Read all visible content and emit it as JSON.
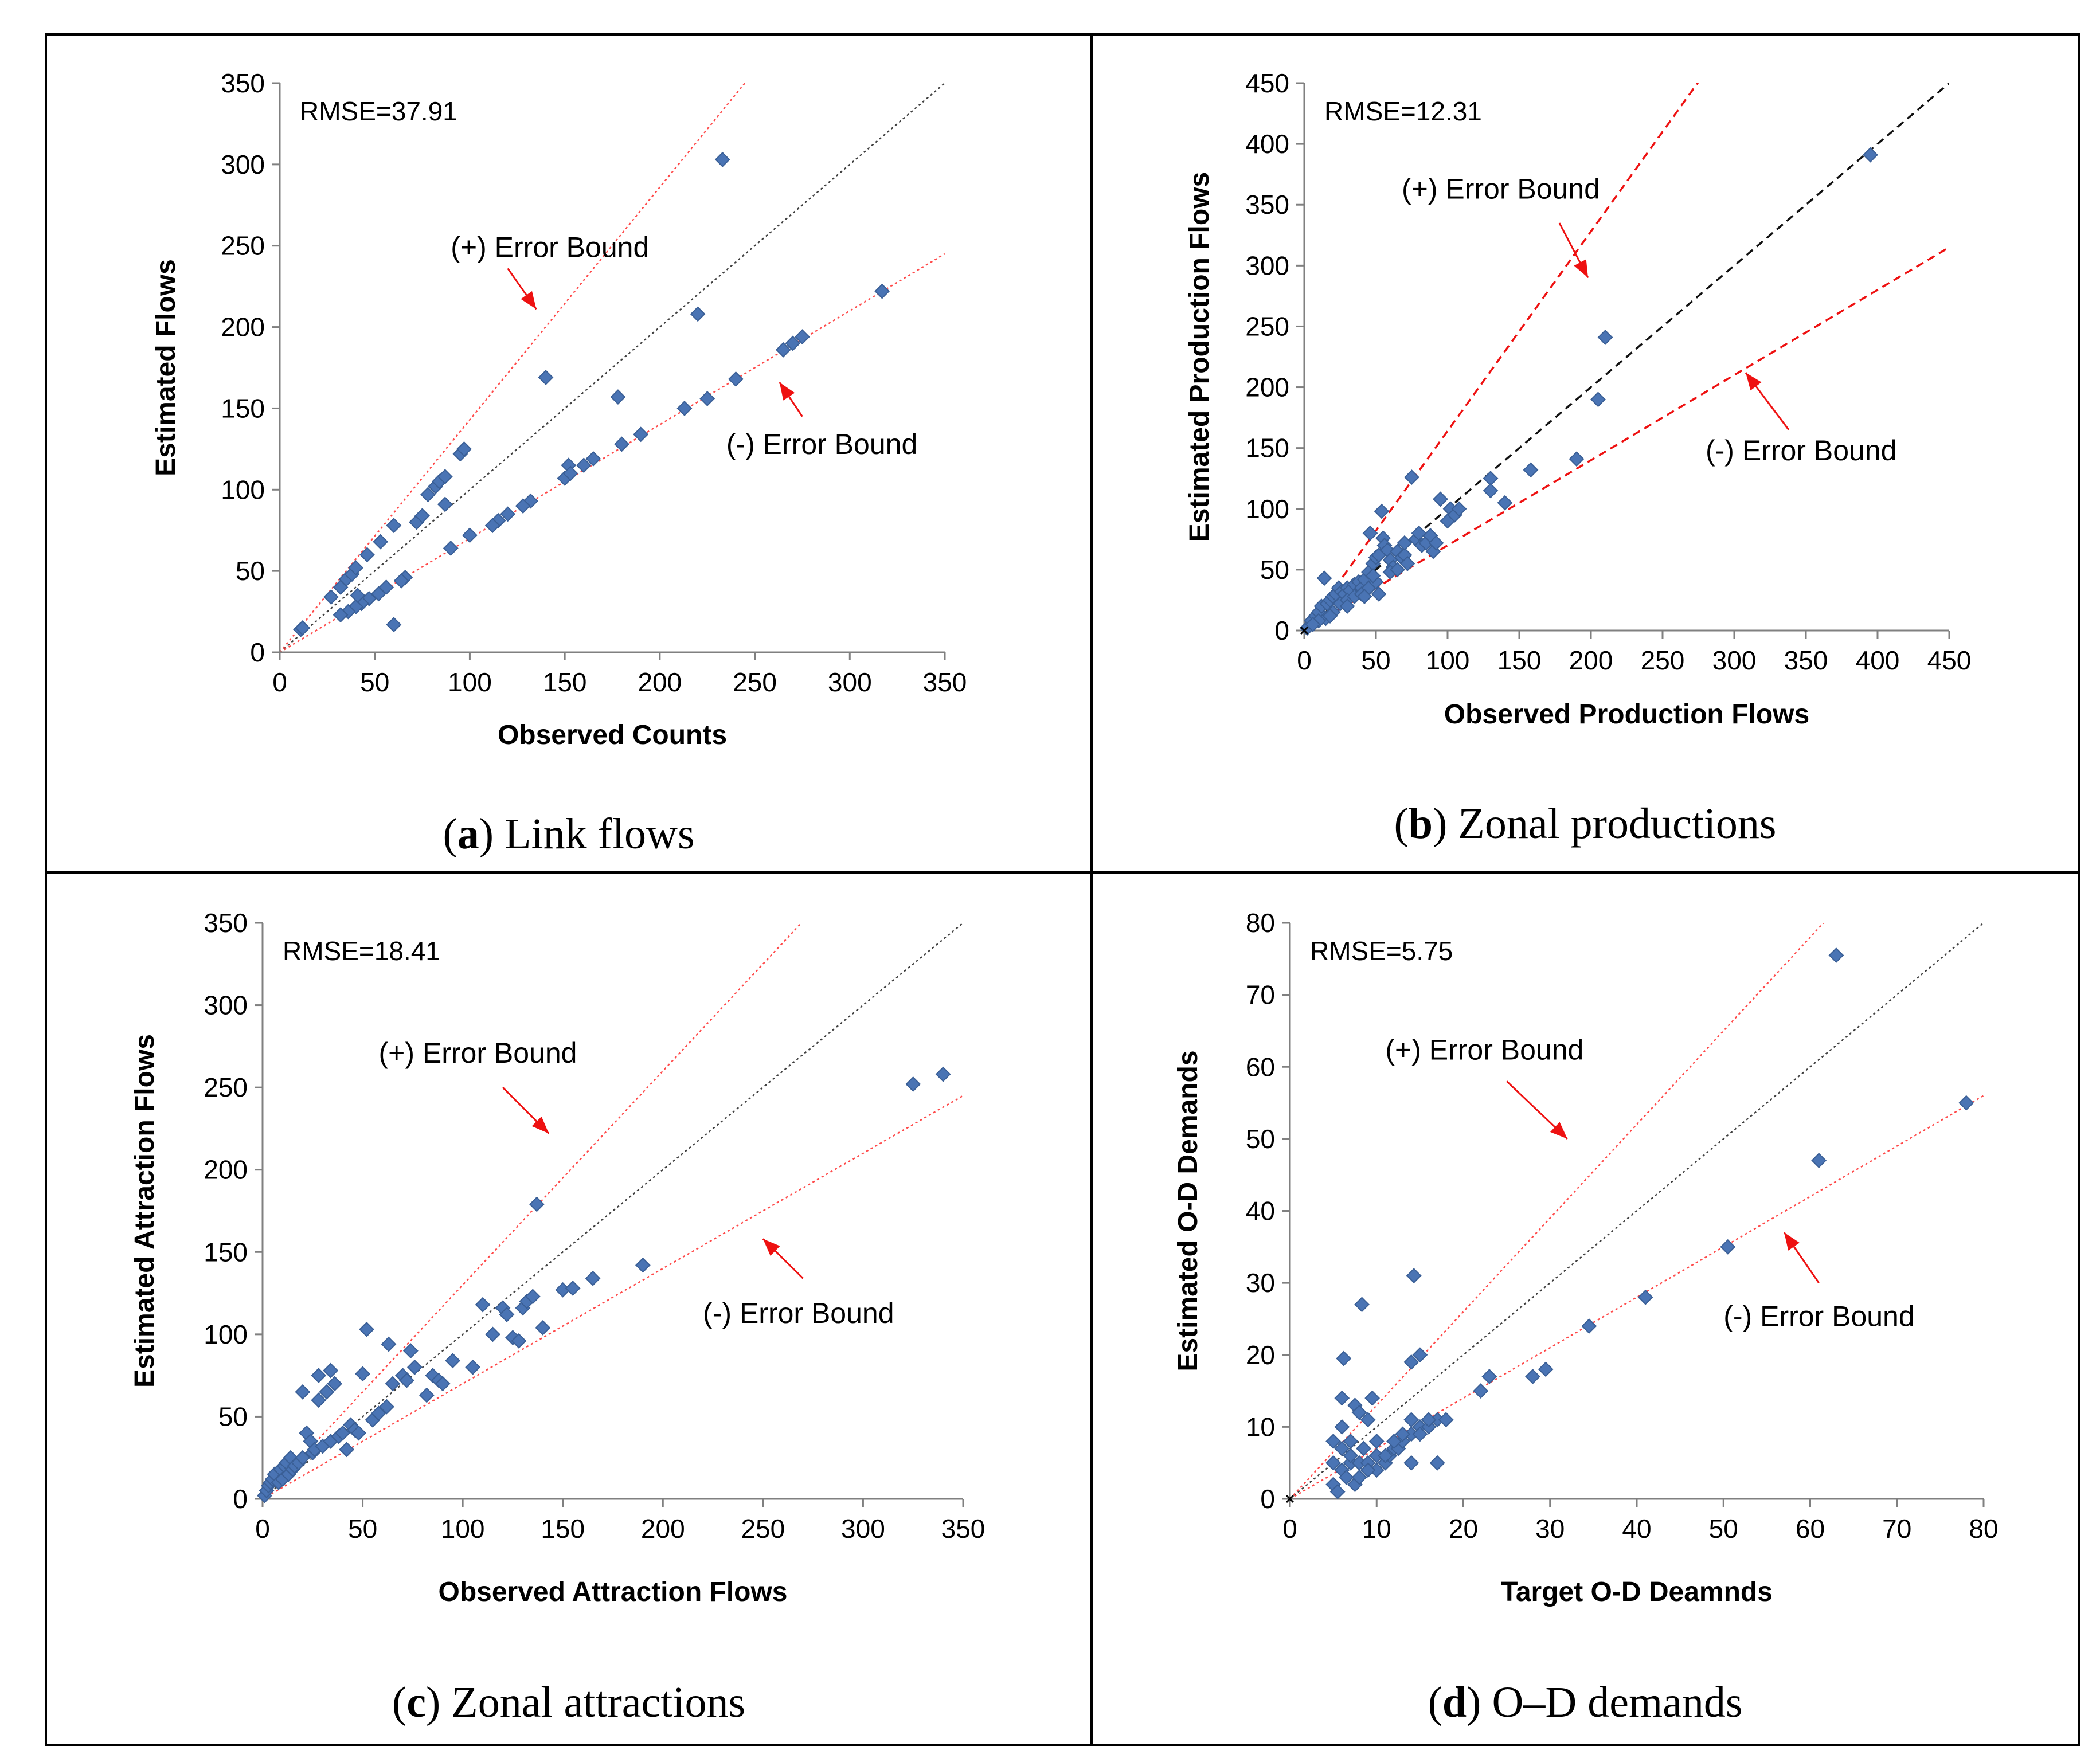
{
  "chart_data": [
    {
      "type": "scatter",
      "panel": "a",
      "caption_letter": "a",
      "caption_text": "Link flows",
      "xlabel": "Observed Counts",
      "ylabel": "Estimated Flows",
      "xlim": [
        0,
        350
      ],
      "ylim": [
        0,
        350
      ],
      "xticks": [
        0,
        50,
        100,
        150,
        200,
        250,
        300,
        350
      ],
      "yticks": [
        0,
        50,
        100,
        150,
        200,
        250,
        300,
        350
      ],
      "rmse_label": "RMSE=37.91",
      "line_style": "thin",
      "bounds": {
        "upper_slope": 1.43,
        "lower_slope": 0.7
      },
      "annotations": [
        {
          "text": "(+) Error Bound",
          "x": 90,
          "y": 243,
          "arrow_from": [
            120,
            236
          ],
          "arrow_to": [
            135,
            211
          ]
        },
        {
          "text": "(-) Error Bound",
          "x": 235,
          "y": 122,
          "arrow_from": [
            275,
            145
          ],
          "arrow_to": [
            263,
            166
          ]
        }
      ],
      "points": [
        [
          11,
          14
        ],
        [
          12,
          15
        ],
        [
          27,
          34
        ],
        [
          32,
          40
        ],
        [
          35,
          45
        ],
        [
          38,
          48
        ],
        [
          40,
          52
        ],
        [
          46,
          60
        ],
        [
          53,
          68
        ],
        [
          60,
          78
        ],
        [
          72,
          80
        ],
        [
          75,
          84
        ],
        [
          78,
          97
        ],
        [
          82,
          102
        ],
        [
          84,
          105
        ],
        [
          87,
          108
        ],
        [
          95,
          122
        ],
        [
          97,
          125
        ],
        [
          140,
          169
        ],
        [
          233,
          303
        ],
        [
          220,
          208
        ],
        [
          317,
          222
        ],
        [
          275,
          194
        ],
        [
          270,
          190
        ],
        [
          265,
          186
        ],
        [
          240,
          168
        ],
        [
          225,
          156
        ],
        [
          213,
          150
        ],
        [
          190,
          134
        ],
        [
          180,
          128
        ],
        [
          178,
          157
        ],
        [
          165,
          119
        ],
        [
          160,
          115
        ],
        [
          152,
          115
        ],
        [
          150,
          107
        ],
        [
          153,
          110
        ],
        [
          132,
          93
        ],
        [
          128,
          90
        ],
        [
          120,
          85
        ],
        [
          115,
          81
        ],
        [
          112,
          78
        ],
        [
          100,
          72
        ],
        [
          90,
          64
        ],
        [
          87,
          91
        ],
        [
          66,
          46
        ],
        [
          64,
          44
        ],
        [
          60,
          17
        ],
        [
          56,
          40
        ],
        [
          52,
          36
        ],
        [
          47,
          33
        ],
        [
          43,
          30
        ],
        [
          40,
          28
        ],
        [
          36,
          25
        ],
        [
          32,
          23
        ],
        [
          41,
          35
        ]
      ]
    },
    {
      "type": "scatter",
      "panel": "b",
      "caption_letter": "b",
      "caption_text": "Zonal productions",
      "xlabel": "Observed Production Flows",
      "ylabel": "Estimated Production Flows",
      "xlim": [
        0,
        450
      ],
      "ylim": [
        0,
        450
      ],
      "xticks": [
        0,
        50,
        100,
        150,
        200,
        250,
        300,
        350,
        400,
        450
      ],
      "yticks": [
        0,
        50,
        100,
        150,
        200,
        250,
        300,
        350,
        400,
        450
      ],
      "rmse_label": "RMSE=12.31",
      "line_style": "heavy",
      "bounds": {
        "upper_slope": 1.64,
        "lower_slope": 0.7
      },
      "annotations": [
        {
          "text": "(+) Error Bound",
          "x": 68,
          "y": 355,
          "arrow_from": [
            178,
            335
          ],
          "arrow_to": [
            198,
            290
          ]
        },
        {
          "text": "(-) Error Bound",
          "x": 280,
          "y": 140,
          "arrow_from": [
            338,
            165
          ],
          "arrow_to": [
            308,
            212
          ]
        }
      ],
      "points": [
        [
          2,
          2
        ],
        [
          5,
          8
        ],
        [
          8,
          12
        ],
        [
          10,
          15
        ],
        [
          12,
          20
        ],
        [
          14,
          43
        ],
        [
          16,
          22
        ],
        [
          18,
          25
        ],
        [
          20,
          28
        ],
        [
          22,
          30
        ],
        [
          24,
          35
        ],
        [
          26,
          32
        ],
        [
          28,
          30
        ],
        [
          30,
          35
        ],
        [
          32,
          33
        ],
        [
          35,
          38
        ],
        [
          38,
          40
        ],
        [
          40,
          35
        ],
        [
          42,
          42
        ],
        [
          45,
          48
        ],
        [
          46,
          80
        ],
        [
          48,
          55
        ],
        [
          50,
          60
        ],
        [
          52,
          62
        ],
        [
          54,
          98
        ],
        [
          55,
          76
        ],
        [
          56,
          70
        ],
        [
          58,
          66
        ],
        [
          60,
          58
        ],
        [
          62,
          52
        ],
        [
          65,
          65
        ],
        [
          68,
          60
        ],
        [
          70,
          62
        ],
        [
          72,
          55
        ],
        [
          75,
          126
        ],
        [
          78,
          75
        ],
        [
          80,
          80
        ],
        [
          82,
          70
        ],
        [
          85,
          72
        ],
        [
          88,
          78
        ],
        [
          90,
          65
        ],
        [
          92,
          72
        ],
        [
          95,
          108
        ],
        [
          100,
          90
        ],
        [
          102,
          100
        ],
        [
          105,
          95
        ],
        [
          108,
          100
        ],
        [
          130,
          125
        ],
        [
          130,
          115
        ],
        [
          140,
          105
        ],
        [
          158,
          132
        ],
        [
          190,
          141
        ],
        [
          205,
          190
        ],
        [
          210,
          241
        ],
        [
          395,
          391
        ],
        [
          20,
          15
        ],
        [
          25,
          22
        ],
        [
          30,
          25
        ],
        [
          35,
          28
        ],
        [
          40,
          30
        ],
        [
          45,
          35
        ],
        [
          50,
          40
        ],
        [
          52,
          30
        ],
        [
          30,
          20
        ],
        [
          15,
          10
        ],
        [
          10,
          8
        ],
        [
          6,
          5
        ],
        [
          18,
          12
        ],
        [
          42,
          28
        ],
        [
          48,
          45
        ],
        [
          60,
          48
        ],
        [
          65,
          50
        ],
        [
          70,
          72
        ]
      ]
    },
    {
      "type": "scatter",
      "panel": "c",
      "caption_letter": "c",
      "caption_text": "Zonal attractions",
      "xlabel": "Observed Attraction Flows",
      "ylabel": "Estimated Attraction Flows",
      "xlim": [
        0,
        350
      ],
      "ylim": [
        0,
        350
      ],
      "xticks": [
        0,
        50,
        100,
        150,
        200,
        250,
        300,
        350
      ],
      "yticks": [
        0,
        50,
        100,
        150,
        200,
        250,
        300,
        350
      ],
      "rmse_label": "RMSE=18.41",
      "line_style": "thin",
      "bounds": {
        "upper_slope": 1.3,
        "lower_slope": 0.7
      },
      "annotations": [
        {
          "text": "(+) Error Bound",
          "x": 58,
          "y": 265,
          "arrow_from": [
            120,
            250
          ],
          "arrow_to": [
            143,
            222
          ]
        },
        {
          "text": "(-) Error Bound",
          "x": 220,
          "y": 107,
          "arrow_from": [
            270,
            134
          ],
          "arrow_to": [
            250,
            158
          ]
        }
      ],
      "points": [
        [
          1,
          2
        ],
        [
          2,
          5
        ],
        [
          3,
          8
        ],
        [
          4,
          10
        ],
        [
          5,
          12
        ],
        [
          6,
          15
        ],
        [
          8,
          10
        ],
        [
          9,
          18
        ],
        [
          10,
          12
        ],
        [
          11,
          20
        ],
        [
          12,
          22
        ],
        [
          13,
          15
        ],
        [
          14,
          25
        ],
        [
          15,
          18
        ],
        [
          16,
          20
        ],
        [
          18,
          22
        ],
        [
          20,
          25
        ],
        [
          20,
          65
        ],
        [
          22,
          40
        ],
        [
          24,
          35
        ],
        [
          25,
          28
        ],
        [
          26,
          30
        ],
        [
          28,
          75
        ],
        [
          28,
          60
        ],
        [
          30,
          32
        ],
        [
          32,
          65
        ],
        [
          34,
          78
        ],
        [
          34,
          35
        ],
        [
          36,
          70
        ],
        [
          38,
          38
        ],
        [
          40,
          40
        ],
        [
          42,
          30
        ],
        [
          44,
          45
        ],
        [
          46,
          42
        ],
        [
          48,
          40
        ],
        [
          50,
          76
        ],
        [
          52,
          103
        ],
        [
          55,
          48
        ],
        [
          58,
          52
        ],
        [
          62,
          56
        ],
        [
          63,
          94
        ],
        [
          65,
          70
        ],
        [
          70,
          75
        ],
        [
          72,
          72
        ],
        [
          74,
          90
        ],
        [
          76,
          80
        ],
        [
          82,
          63
        ],
        [
          85,
          75
        ],
        [
          88,
          72
        ],
        [
          90,
          70
        ],
        [
          95,
          84
        ],
        [
          105,
          80
        ],
        [
          110,
          118
        ],
        [
          115,
          100
        ],
        [
          120,
          116
        ],
        [
          122,
          112
        ],
        [
          125,
          98
        ],
        [
          128,
          96
        ],
        [
          130,
          116
        ],
        [
          132,
          120
        ],
        [
          135,
          123
        ],
        [
          137,
          179
        ],
        [
          140,
          104
        ],
        [
          150,
          127
        ],
        [
          155,
          128
        ],
        [
          165,
          134
        ],
        [
          190,
          142
        ],
        [
          325,
          252
        ],
        [
          340,
          258
        ]
      ]
    },
    {
      "type": "scatter",
      "panel": "d",
      "caption_letter": "d",
      "caption_text": "O–D demands",
      "xlabel": "Target O-D Deamnds",
      "ylabel": "Estimated O-D Demands",
      "xlim": [
        0,
        80
      ],
      "ylim": [
        0,
        80
      ],
      "xticks": [
        0,
        10,
        20,
        30,
        40,
        50,
        60,
        70,
        80
      ],
      "yticks": [
        0,
        10,
        20,
        30,
        40,
        50,
        60,
        70,
        80
      ],
      "rmse_label": "RMSE=5.75",
      "line_style": "thin",
      "bounds": {
        "upper_slope": 1.3,
        "lower_slope": 0.7
      },
      "annotations": [
        {
          "text": "(+) Error Bound",
          "x": 11,
          "y": 61,
          "arrow_from": [
            25,
            58
          ],
          "arrow_to": [
            32,
            50
          ]
        },
        {
          "text": "(-) Error Bound",
          "x": 50,
          "y": 24,
          "arrow_from": [
            61,
            30
          ],
          "arrow_to": [
            57,
            37
          ]
        }
      ],
      "points": [
        [
          5,
          2
        ],
        [
          5,
          8
        ],
        [
          5.5,
          1
        ],
        [
          6,
          4
        ],
        [
          6,
          10
        ],
        [
          6,
          14
        ],
        [
          6.2,
          19.5
        ],
        [
          6.5,
          3
        ],
        [
          7,
          5
        ],
        [
          7,
          6
        ],
        [
          7.5,
          2
        ],
        [
          7.5,
          13
        ],
        [
          8,
          5
        ],
        [
          8,
          12
        ],
        [
          8.3,
          27
        ],
        [
          8.5,
          7
        ],
        [
          9,
          5
        ],
        [
          9,
          11
        ],
        [
          9.5,
          14
        ],
        [
          10,
          4
        ],
        [
          10,
          6
        ],
        [
          11,
          5
        ],
        [
          11.5,
          6
        ],
        [
          12,
          7
        ],
        [
          12.5,
          7
        ],
        [
          13,
          8
        ],
        [
          14,
          5
        ],
        [
          14,
          9
        ],
        [
          14,
          11
        ],
        [
          14,
          19
        ],
        [
          14.3,
          31
        ],
        [
          15,
          20
        ],
        [
          15,
          10
        ],
        [
          16,
          10
        ],
        [
          17,
          5
        ],
        [
          17,
          11
        ],
        [
          18,
          11
        ],
        [
          22,
          15
        ],
        [
          23,
          17
        ],
        [
          28,
          17
        ],
        [
          29.5,
          18
        ],
        [
          34.5,
          24
        ],
        [
          41,
          28
        ],
        [
          50.5,
          35
        ],
        [
          61,
          47
        ],
        [
          63,
          75.5
        ],
        [
          78,
          55
        ],
        [
          5,
          5
        ],
        [
          6,
          7
        ],
        [
          7,
          8
        ],
        [
          8,
          3
        ],
        [
          9,
          4
        ],
        [
          10,
          8
        ],
        [
          11,
          6
        ],
        [
          12,
          8
        ],
        [
          13,
          9
        ],
        [
          15,
          9
        ],
        [
          16,
          11
        ]
      ]
    }
  ]
}
